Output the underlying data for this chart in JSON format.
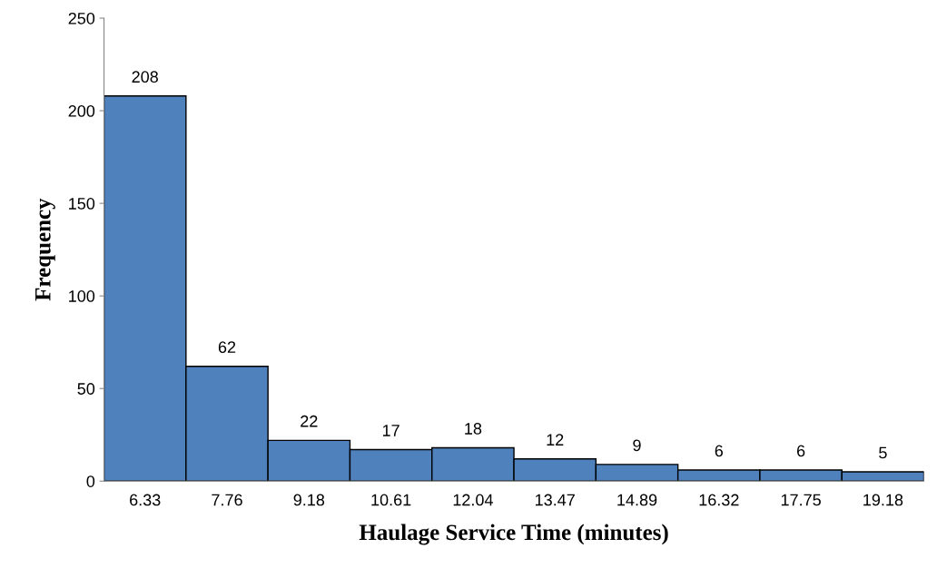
{
  "chart_data": {
    "type": "bar",
    "xlabel": "Haulage Service Time (minutes)",
    "ylabel": "Frequency",
    "categories": [
      "6.33",
      "7.76",
      "9.18",
      "10.61",
      "12.04",
      "13.47",
      "14.89",
      "16.32",
      "17.75",
      "19.18"
    ],
    "values": [
      208,
      62,
      22,
      17,
      18,
      12,
      9,
      6,
      6,
      5
    ],
    "color": "#4f81bd",
    "ylim": [
      0,
      250
    ],
    "yticks": [
      0,
      50,
      100,
      150,
      200,
      250
    ],
    "grid": false,
    "data_labels": true,
    "legend": false
  }
}
